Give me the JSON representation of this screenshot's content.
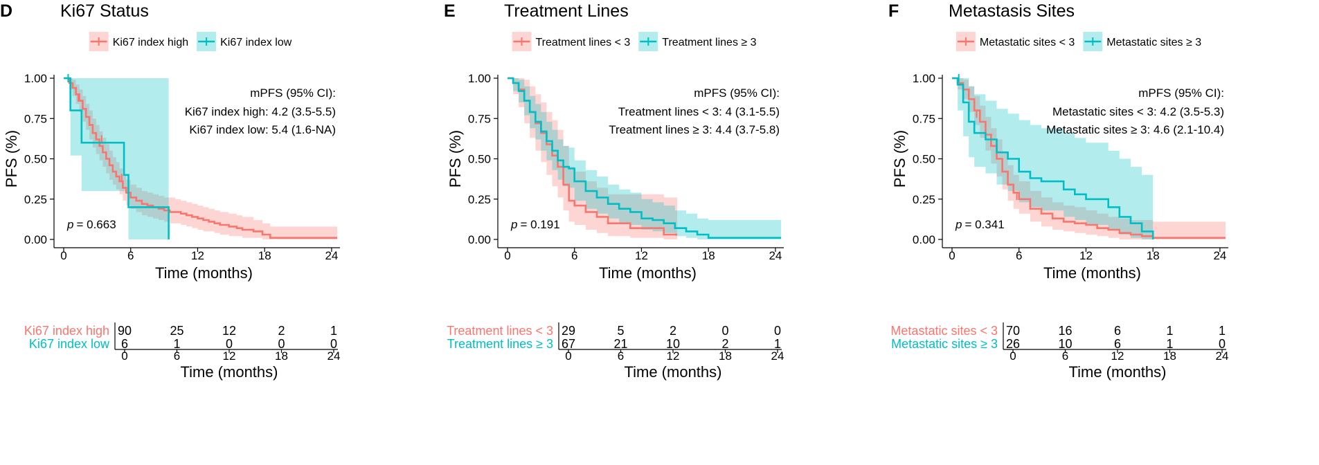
{
  "colors": {
    "high": "#F8766D",
    "low": "#00BFC4",
    "high_fill": "#F8766D",
    "low_fill": "#00BFC4",
    "axis": "#000000"
  },
  "chart_data": [
    {
      "type": "line",
      "subtype": "kaplan-meier",
      "panel_letter": "D",
      "title": "Ki67 Status",
      "xlabel": "Time (months)",
      "ylabel": "PFS (%)",
      "xlim": [
        0,
        24.5
      ],
      "ylim": [
        0,
        1
      ],
      "xticks": [
        0,
        6,
        12,
        18,
        24
      ],
      "yticks": [
        0,
        0.25,
        0.5,
        0.75,
        1
      ],
      "ytick_labels": [
        "0.00",
        "0.25",
        "0.50",
        "0.75",
        "1.00"
      ],
      "legend": [
        "Ki67 index high",
        "Ki67 index low"
      ],
      "annotation": {
        "header": "mPFS (95% CI):",
        "lines": [
          "Ki67 index high: 4.2 (3.5-5.5)",
          "Ki67 index low: 5.4 (1.6-NA)"
        ]
      },
      "p_label": "p",
      "p_value": "= 0.663",
      "series": [
        {
          "name": "Ki67 index high",
          "color_key": "high",
          "x": [
            0,
            0.5,
            0.8,
            1.1,
            1.4,
            1.7,
            2.0,
            2.3,
            2.6,
            2.9,
            3.2,
            3.5,
            3.8,
            4.1,
            4.4,
            4.7,
            5.0,
            5.3,
            5.6,
            6.0,
            6.5,
            7.0,
            7.5,
            8.0,
            8.5,
            9.0,
            9.5,
            10.0,
            10.5,
            11.0,
            11.5,
            12.0,
            12.5,
            13.0,
            13.5,
            14.0,
            14.8,
            15.5,
            16.0,
            17.0,
            17.8,
            18.5,
            24.5
          ],
          "y": [
            1.0,
            0.97,
            0.94,
            0.9,
            0.86,
            0.81,
            0.76,
            0.71,
            0.66,
            0.62,
            0.58,
            0.54,
            0.5,
            0.46,
            0.42,
            0.39,
            0.36,
            0.32,
            0.29,
            0.26,
            0.24,
            0.22,
            0.21,
            0.2,
            0.19,
            0.18,
            0.17,
            0.17,
            0.16,
            0.15,
            0.14,
            0.13,
            0.12,
            0.11,
            0.1,
            0.09,
            0.08,
            0.07,
            0.06,
            0.05,
            0.03,
            0.01,
            0.01
          ],
          "ci_upper": [
            1.0,
            1.0,
            0.99,
            0.96,
            0.93,
            0.89,
            0.84,
            0.8,
            0.75,
            0.71,
            0.67,
            0.63,
            0.59,
            0.55,
            0.51,
            0.48,
            0.44,
            0.4,
            0.37,
            0.34,
            0.32,
            0.3,
            0.29,
            0.28,
            0.27,
            0.26,
            0.26,
            0.25,
            0.24,
            0.23,
            0.22,
            0.21,
            0.2,
            0.19,
            0.18,
            0.17,
            0.16,
            0.15,
            0.14,
            0.12,
            0.1,
            0.08,
            0.08
          ],
          "ci_lower": [
            1.0,
            0.93,
            0.89,
            0.84,
            0.79,
            0.73,
            0.68,
            0.62,
            0.57,
            0.53,
            0.49,
            0.45,
            0.41,
            0.37,
            0.34,
            0.31,
            0.28,
            0.24,
            0.21,
            0.19,
            0.17,
            0.15,
            0.14,
            0.13,
            0.12,
            0.11,
            0.1,
            0.1,
            0.09,
            0.08,
            0.07,
            0.06,
            0.05,
            0.05,
            0.04,
            0.03,
            0.02,
            0.02,
            0.01,
            0.01,
            0.0,
            0.0,
            0.0
          ],
          "censor_x": [
            1.3,
            3.4,
            5.2
          ],
          "censor_y": [
            0.88,
            0.62,
            0.38
          ]
        },
        {
          "name": "Ki67 index low",
          "color_key": "low",
          "x": [
            0,
            0.6,
            1.6,
            5.4,
            5.8,
            9.4
          ],
          "y": [
            1.0,
            0.8,
            0.6,
            0.4,
            0.2,
            0.0
          ],
          "ci_upper": [
            1.0,
            1.0,
            1.0,
            1.0,
            1.0,
            1.0
          ],
          "ci_lower": [
            1.0,
            0.52,
            0.3,
            0.3,
            0.0,
            0.0
          ],
          "censor_x": [
            0.4
          ],
          "censor_y": [
            1.0
          ]
        }
      ],
      "risk_table": {
        "xlabel": "Time (months)",
        "times": [
          0,
          6,
          12,
          18,
          24
        ],
        "rows": [
          {
            "name": "Ki67 index high",
            "color_key": "high",
            "values": [
              90,
              25,
              12,
              2,
              1
            ]
          },
          {
            "name": "Ki67 index low",
            "color_key": "low",
            "values": [
              6,
              1,
              0,
              0,
              0
            ]
          }
        ]
      }
    },
    {
      "type": "line",
      "subtype": "kaplan-meier",
      "panel_letter": "E",
      "title": "Treatment Lines",
      "xlabel": "Time (months)",
      "ylabel": "PFS (%)",
      "xlim": [
        0,
        24.5
      ],
      "ylim": [
        0,
        1
      ],
      "xticks": [
        0,
        6,
        12,
        18,
        24
      ],
      "yticks": [
        0,
        0.25,
        0.5,
        0.75,
        1
      ],
      "ytick_labels": [
        "0.00",
        "0.25",
        "0.50",
        "0.75",
        "1.00"
      ],
      "legend": [
        "Treatment lines < 3",
        "Treatment lines ≥ 3"
      ],
      "annotation": {
        "header": "mPFS (95% CI):",
        "lines": [
          "Treatment lines < 3: 4 (3.1-5.5)",
          "Treatment lines ≥ 3: 4.4 (3.7-5.8)"
        ]
      },
      "p_label": "p",
      "p_value": "= 0.191",
      "series": [
        {
          "name": "Treatment lines < 3",
          "color_key": "high",
          "x": [
            0,
            0.5,
            1.0,
            1.5,
            2.0,
            2.5,
            3.0,
            3.5,
            4.0,
            4.5,
            5.0,
            5.5,
            6.0,
            7.0,
            8.0,
            9.0,
            10.0,
            11.0,
            12.0,
            13.0,
            14.0,
            15.2
          ],
          "y": [
            1.0,
            0.97,
            0.93,
            0.86,
            0.79,
            0.72,
            0.66,
            0.59,
            0.52,
            0.45,
            0.34,
            0.24,
            0.21,
            0.17,
            0.14,
            0.1,
            0.1,
            0.07,
            0.07,
            0.07,
            0.03,
            0.03
          ],
          "ci_upper": [
            1.0,
            1.0,
            1.0,
            0.99,
            0.95,
            0.9,
            0.85,
            0.79,
            0.74,
            0.68,
            0.58,
            0.45,
            0.42,
            0.36,
            0.32,
            0.28,
            0.28,
            0.28,
            0.28,
            0.28,
            0.26,
            0.26
          ],
          "ci_lower": [
            1.0,
            0.9,
            0.82,
            0.72,
            0.63,
            0.55,
            0.48,
            0.4,
            0.33,
            0.26,
            0.18,
            0.11,
            0.09,
            0.06,
            0.04,
            0.02,
            0.02,
            0.01,
            0.01,
            0.01,
            0.0,
            0.0
          ],
          "censor_x": [],
          "censor_y": []
        },
        {
          "name": "Treatment lines ≥ 3",
          "color_key": "low",
          "x": [
            0,
            0.5,
            1.0,
            1.5,
            2.0,
            2.5,
            3.0,
            3.5,
            4.0,
            4.5,
            5.0,
            5.5,
            6.0,
            7.0,
            8.0,
            9.0,
            10.0,
            11.0,
            12.0,
            13.0,
            14.0,
            15.0,
            16.0,
            17.0,
            18.0,
            24.5
          ],
          "y": [
            1.0,
            0.97,
            0.92,
            0.86,
            0.79,
            0.73,
            0.67,
            0.61,
            0.55,
            0.49,
            0.45,
            0.44,
            0.36,
            0.3,
            0.26,
            0.22,
            0.19,
            0.17,
            0.13,
            0.12,
            0.1,
            0.07,
            0.05,
            0.03,
            0.01,
            0.01
          ],
          "ci_upper": [
            1.0,
            1.0,
            0.99,
            0.95,
            0.89,
            0.84,
            0.79,
            0.73,
            0.68,
            0.62,
            0.58,
            0.57,
            0.49,
            0.43,
            0.39,
            0.34,
            0.31,
            0.29,
            0.25,
            0.23,
            0.21,
            0.18,
            0.16,
            0.13,
            0.12,
            0.12
          ],
          "ci_lower": [
            1.0,
            0.92,
            0.85,
            0.77,
            0.69,
            0.62,
            0.55,
            0.49,
            0.43,
            0.37,
            0.33,
            0.32,
            0.24,
            0.19,
            0.16,
            0.13,
            0.1,
            0.09,
            0.06,
            0.05,
            0.04,
            0.02,
            0.01,
            0.0,
            0.0,
            0.0
          ],
          "censor_x": [],
          "censor_y": []
        }
      ],
      "risk_table": {
        "xlabel": "Time (months)",
        "times": [
          0,
          6,
          12,
          18,
          24
        ],
        "rows": [
          {
            "name": "Treatment lines < 3",
            "color_key": "high",
            "values": [
              29,
              5,
              2,
              0,
              0
            ]
          },
          {
            "name": "Treatment lines ≥ 3",
            "color_key": "low",
            "values": [
              67,
              21,
              10,
              2,
              1
            ]
          }
        ]
      }
    },
    {
      "type": "line",
      "subtype": "kaplan-meier",
      "panel_letter": "F",
      "title": "Metastasis Sites",
      "xlabel": "Time (months)",
      "ylabel": "PFS (%)",
      "xlim": [
        0,
        24.5
      ],
      "ylim": [
        0,
        1
      ],
      "xticks": [
        0,
        6,
        12,
        18,
        24
      ],
      "yticks": [
        0,
        0.25,
        0.5,
        0.75,
        1
      ],
      "ytick_labels": [
        "0.00",
        "0.25",
        "0.50",
        "0.75",
        "1.00"
      ],
      "legend": [
        "Metastatic sites < 3",
        "Metastatic sites ≥ 3"
      ],
      "annotation": {
        "header": "mPFS (95% CI):",
        "lines": [
          "Metastatic sites < 3: 4.2 (3.5-5.3)",
          "Metastatic sites ≥ 3: 4.6 (2.1-10.4)"
        ]
      },
      "p_label": "p",
      "p_value": "= 0.341",
      "series": [
        {
          "name": "Metastatic sites < 3",
          "color_key": "high",
          "x": [
            0,
            0.5,
            1.0,
            1.5,
            2.0,
            2.5,
            3.0,
            3.5,
            4.0,
            4.5,
            5.0,
            5.5,
            6.0,
            7.0,
            8.0,
            9.0,
            10.0,
            11.0,
            12.0,
            13.0,
            14.0,
            15.0,
            16.0,
            17.0,
            18.0,
            24.5
          ],
          "y": [
            1.0,
            0.97,
            0.93,
            0.87,
            0.8,
            0.73,
            0.65,
            0.58,
            0.5,
            0.42,
            0.34,
            0.29,
            0.25,
            0.19,
            0.16,
            0.13,
            0.11,
            0.1,
            0.09,
            0.07,
            0.06,
            0.04,
            0.03,
            0.02,
            0.01,
            0.01
          ],
          "ci_upper": [
            1.0,
            1.0,
            0.99,
            0.95,
            0.89,
            0.83,
            0.76,
            0.69,
            0.62,
            0.54,
            0.46,
            0.4,
            0.36,
            0.3,
            0.26,
            0.23,
            0.21,
            0.2,
            0.18,
            0.16,
            0.14,
            0.13,
            0.12,
            0.12,
            0.11,
            0.11
          ],
          "ci_lower": [
            1.0,
            0.93,
            0.87,
            0.79,
            0.71,
            0.63,
            0.55,
            0.47,
            0.39,
            0.31,
            0.24,
            0.19,
            0.16,
            0.11,
            0.08,
            0.06,
            0.05,
            0.04,
            0.03,
            0.02,
            0.01,
            0.0,
            0.0,
            0.0,
            0.0,
            0.0
          ],
          "censor_x": [
            2.2,
            5.8
          ],
          "censor_y": [
            0.78,
            0.27
          ]
        },
        {
          "name": "Metastatic sites ≥ 3",
          "color_key": "low",
          "x": [
            0,
            0.5,
            1.0,
            1.5,
            2.0,
            3.0,
            4.0,
            5.0,
            6.0,
            7.0,
            8.0,
            9.0,
            10.0,
            11.0,
            12.0,
            13.0,
            14.0,
            15.0,
            16.0,
            17.0,
            18.0
          ],
          "y": [
            1.0,
            0.96,
            0.85,
            0.73,
            0.66,
            0.62,
            0.54,
            0.5,
            0.42,
            0.38,
            0.36,
            0.36,
            0.31,
            0.28,
            0.25,
            0.25,
            0.2,
            0.14,
            0.1,
            0.05,
            0.0
          ],
          "ci_upper": [
            1.0,
            1.0,
            1.0,
            0.95,
            0.9,
            0.86,
            0.81,
            0.78,
            0.74,
            0.71,
            0.69,
            0.69,
            0.66,
            0.63,
            0.6,
            0.6,
            0.55,
            0.5,
            0.45,
            0.4,
            0.4
          ],
          "ci_lower": [
            1.0,
            0.8,
            0.64,
            0.51,
            0.45,
            0.41,
            0.34,
            0.3,
            0.23,
            0.2,
            0.18,
            0.18,
            0.14,
            0.12,
            0.09,
            0.09,
            0.06,
            0.03,
            0.01,
            0.0,
            0.0
          ],
          "censor_x": [
            0.6
          ],
          "censor_y": [
            1.0
          ]
        }
      ],
      "risk_table": {
        "xlabel": "Time (months)",
        "times": [
          0,
          6,
          12,
          18,
          24
        ],
        "rows": [
          {
            "name": "Metastatic sites < 3",
            "color_key": "high",
            "values": [
              70,
              16,
              6,
              1,
              1
            ]
          },
          {
            "name": "Metastatic sites ≥ 3",
            "color_key": "low",
            "values": [
              26,
              10,
              6,
              1,
              0
            ]
          }
        ]
      }
    }
  ]
}
